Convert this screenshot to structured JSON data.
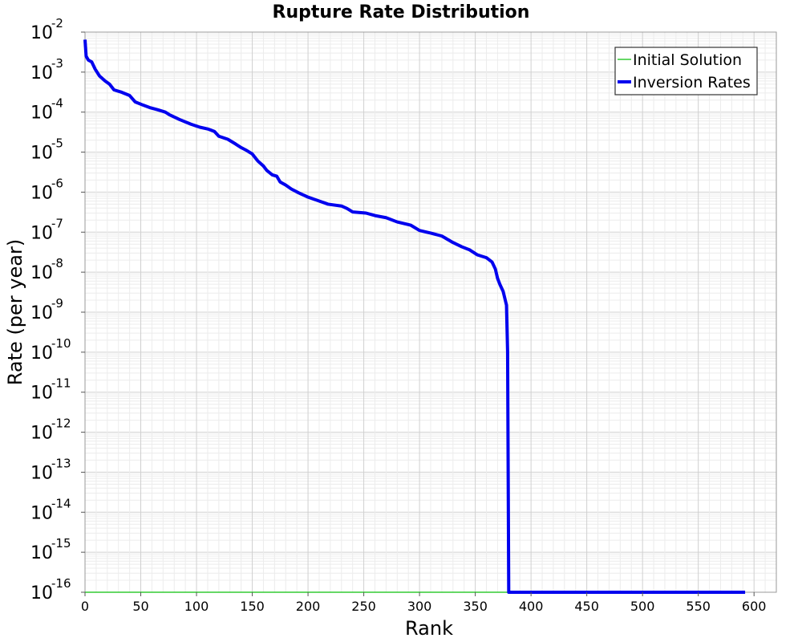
{
  "chart_data": {
    "type": "line",
    "title": "Rupture Rate Distribution",
    "xlabel": "Rank",
    "ylabel": "Rate (per year)",
    "xlim": [
      0,
      620
    ],
    "ylim": [
      1e-16,
      0.01
    ],
    "yscale": "log",
    "grid": true,
    "legend_position": "top-right",
    "x_ticks": [
      "0",
      "50",
      "100",
      "150",
      "200",
      "250",
      "300",
      "350",
      "400",
      "450",
      "500",
      "550",
      "600"
    ],
    "y_tick_base": "10",
    "y_tick_exponents": [
      "-2",
      "-3",
      "-4",
      "-5",
      "-6",
      "-7",
      "-8",
      "-9",
      "-10",
      "-11",
      "-12",
      "-13",
      "-14",
      "-15",
      "-16"
    ],
    "series": [
      {
        "name": "Initial Solution",
        "color": "#33cc33",
        "points": [
          [
            0,
            1e-16
          ],
          [
            592,
            1e-16
          ]
        ]
      },
      {
        "name": "Inversion Rates",
        "color": "#0000ee",
        "points": [
          [
            0,
            0.0065
          ],
          [
            1,
            0.0025
          ],
          [
            3,
            0.002
          ],
          [
            6,
            0.0018
          ],
          [
            9,
            0.0012
          ],
          [
            13,
            0.0008
          ],
          [
            18,
            0.0006
          ],
          [
            22,
            0.0005
          ],
          [
            26,
            0.00036
          ],
          [
            32,
            0.00032
          ],
          [
            40,
            0.00026
          ],
          [
            45,
            0.00018
          ],
          [
            52,
            0.00015
          ],
          [
            58,
            0.00013
          ],
          [
            65,
            0.000115
          ],
          [
            72,
            0.0001
          ],
          [
            76,
            8.5e-05
          ],
          [
            85,
            6.5e-05
          ],
          [
            95,
            5e-05
          ],
          [
            103,
            4.2e-05
          ],
          [
            110,
            3.8e-05
          ],
          [
            116,
            3.3e-05
          ],
          [
            120,
            2.5e-05
          ],
          [
            128,
            2.1e-05
          ],
          [
            135,
            1.6e-05
          ],
          [
            140,
            1.3e-05
          ],
          [
            145,
            1.1e-05
          ],
          [
            150,
            9e-06
          ],
          [
            155,
            6e-06
          ],
          [
            160,
            4.5e-06
          ],
          [
            163,
            3.5e-06
          ],
          [
            168,
            2.7e-06
          ],
          [
            172,
            2.5e-06
          ],
          [
            175,
            1.8e-06
          ],
          [
            180,
            1.5e-06
          ],
          [
            185,
            1.2e-06
          ],
          [
            192,
            9.5e-07
          ],
          [
            200,
            7.5e-07
          ],
          [
            210,
            6e-07
          ],
          [
            218,
            5e-07
          ],
          [
            230,
            4.5e-07
          ],
          [
            235,
            3.9e-07
          ],
          [
            240,
            3.2e-07
          ],
          [
            252,
            3e-07
          ],
          [
            260,
            2.6e-07
          ],
          [
            270,
            2.3e-07
          ],
          [
            280,
            1.8e-07
          ],
          [
            292,
            1.5e-07
          ],
          [
            300,
            1.1e-07
          ],
          [
            310,
            9.5e-08
          ],
          [
            320,
            8e-08
          ],
          [
            330,
            5.5e-08
          ],
          [
            338,
            4.3e-08
          ],
          [
            345,
            3.6e-08
          ],
          [
            352,
            2.7e-08
          ],
          [
            360,
            2.3e-08
          ],
          [
            365,
            1.8e-08
          ],
          [
            368,
            1.2e-08
          ],
          [
            370,
            7e-09
          ],
          [
            372,
            5e-09
          ],
          [
            375,
            3.3e-09
          ],
          [
            378,
            1.5e-09
          ],
          [
            379,
            1e-10
          ],
          [
            380,
            1e-16
          ],
          [
            592,
            1e-16
          ]
        ]
      }
    ]
  }
}
